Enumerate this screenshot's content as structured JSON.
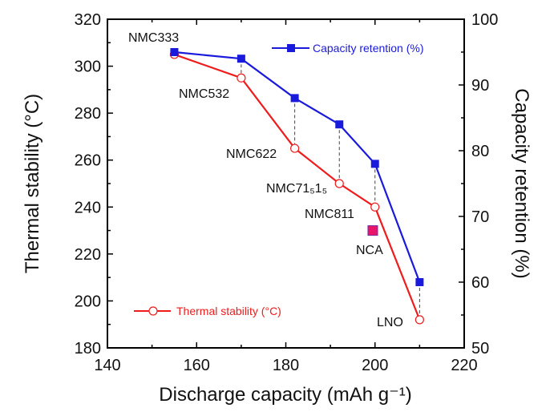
{
  "chart_data": {
    "type": "line",
    "xlabel": "Discharge capacity (mAh g⁻¹)",
    "ylabel_left": "Thermal stability (°C)",
    "ylabel_right": "Capacity retention (%)",
    "xlim": [
      140,
      220
    ],
    "ylim_left": [
      180,
      320
    ],
    "ylim_right": [
      50,
      100
    ],
    "x_ticks": [
      140,
      160,
      180,
      200,
      220
    ],
    "y_left_ticks": [
      180,
      200,
      220,
      240,
      260,
      280,
      300,
      320
    ],
    "y_right_ticks": [
      50,
      60,
      70,
      80,
      90,
      100
    ],
    "grid": false,
    "series": [
      {
        "name": "Capacity retention (%)",
        "axis": "right",
        "color": "#1a1adc",
        "marker": "filled-square",
        "x": [
          155,
          170,
          182,
          192,
          200,
          210
        ],
        "values": [
          95,
          94,
          88,
          84,
          78,
          60
        ],
        "legend": "top-right"
      },
      {
        "name": "Thermal stability (°C)",
        "axis": "left",
        "color": "#ee1c1c",
        "marker": "open-circle",
        "x": [
          155,
          170,
          182,
          192,
          200,
          210
        ],
        "values": [
          305,
          295,
          265,
          250,
          240,
          192
        ],
        "legend": "bottom-left"
      }
    ],
    "extra_points": [
      {
        "name": "NCA",
        "x": 199.5,
        "y_left": 230,
        "color": "#e8156b"
      }
    ],
    "annotations": [
      "NMC333",
      "NMC532",
      "NMC622",
      "NMC71₅1₅",
      "NMC811",
      "NCA",
      "LNO"
    ]
  }
}
